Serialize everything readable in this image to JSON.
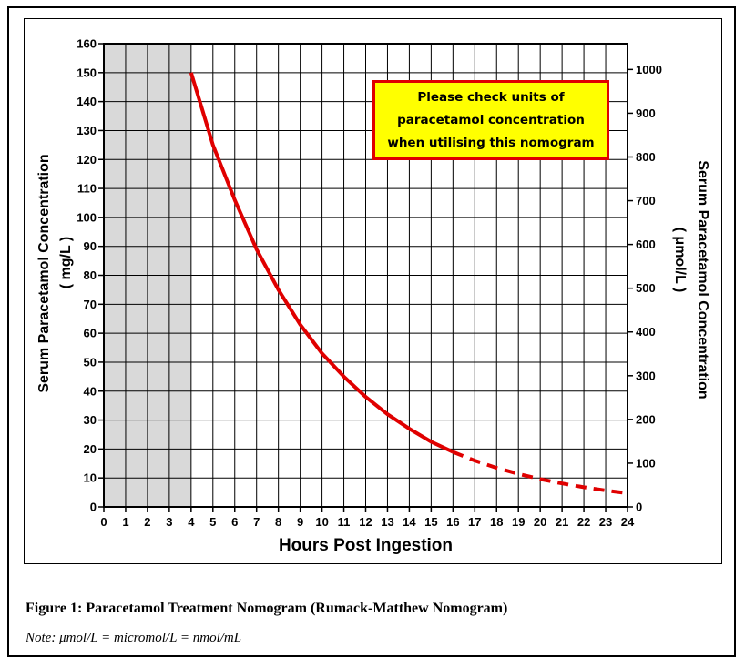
{
  "chart_data": {
    "type": "line",
    "x_axis": {
      "label": "Hours Post Ingestion",
      "range": [
        0,
        24
      ],
      "ticks": [
        "0",
        "1",
        "2",
        "3",
        "4",
        "5",
        "6",
        "7",
        "8",
        "9",
        "10",
        "11",
        "12",
        "13",
        "14",
        "15",
        "16",
        "17",
        "18",
        "19",
        "20",
        "21",
        "22",
        "23",
        "24"
      ]
    },
    "y_axis_left": {
      "label": "Serum Paracetamol Concentration",
      "unit_label": "( mg/L )",
      "range": [
        0,
        160
      ],
      "ticks": [
        "0",
        "10",
        "20",
        "30",
        "40",
        "50",
        "60",
        "70",
        "80",
        "90",
        "100",
        "110",
        "120",
        "130",
        "140",
        "150",
        "160"
      ]
    },
    "y_axis_right": {
      "label": "Serum Paracetamol Concentration",
      "unit_label": "( μmol/L )",
      "range": [
        0,
        1059
      ],
      "ticks": [
        "0",
        "100",
        "200",
        "300",
        "400",
        "500",
        "600",
        "700",
        "800",
        "900",
        "1000"
      ]
    },
    "grid": true,
    "shaded_region": {
      "x": [
        0,
        4
      ],
      "color": "#d9d9d9"
    },
    "series": [
      {
        "style": "solid",
        "color": "#e00000",
        "points": [
          [
            4,
            150
          ],
          [
            5,
            125
          ],
          [
            6,
            106
          ],
          [
            7,
            89
          ],
          [
            8,
            75
          ],
          [
            9,
            63
          ],
          [
            10,
            53
          ],
          [
            11,
            45
          ],
          [
            12,
            38
          ],
          [
            13,
            32
          ],
          [
            14,
            27
          ],
          [
            15,
            22.5
          ],
          [
            16,
            19
          ]
        ]
      },
      {
        "style": "dashed",
        "color": "#e00000",
        "points": [
          [
            16,
            19
          ],
          [
            17,
            16
          ],
          [
            18,
            13.5
          ],
          [
            19,
            11.4
          ],
          [
            20,
            9.6
          ],
          [
            21,
            8.1
          ],
          [
            22,
            6.8
          ],
          [
            23,
            5.7
          ],
          [
            24,
            4.7
          ]
        ]
      }
    ],
    "annotation": {
      "lines": [
        "Please check units of",
        "paracetamol concentration",
        "when utilising this nomogram"
      ],
      "background": "#ffff00",
      "border": "#e00000"
    }
  },
  "caption": {
    "title": "Figure 1: Paracetamol Treatment Nomogram (Rumack-Matthew Nomogram)",
    "note": "Note: μmol/L = micromol/L = nmol/mL"
  }
}
